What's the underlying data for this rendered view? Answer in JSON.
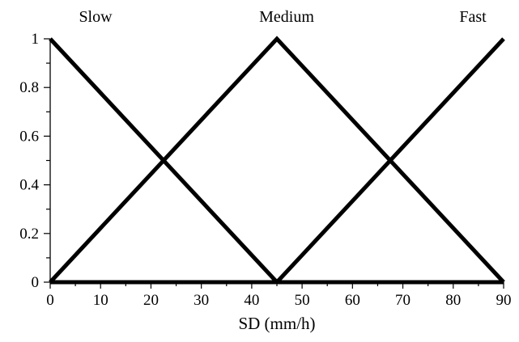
{
  "chart_data": {
    "type": "line",
    "xlabel": "SD (mm/h)",
    "ylabel": "",
    "xlim": [
      0,
      90
    ],
    "ylim": [
      0,
      1
    ],
    "x_ticks": [
      "0",
      "10",
      "20",
      "30",
      "40",
      "50",
      "60",
      "70",
      "80",
      "90"
    ],
    "y_ticks": [
      "0",
      "0.2",
      "0.4",
      "0.6",
      "0.8",
      "1"
    ],
    "grid": false,
    "series": [
      {
        "name": "Slow",
        "x": [
          0,
          45,
          90
        ],
        "y": [
          1,
          0,
          0
        ]
      },
      {
        "name": "Medium",
        "x": [
          0,
          45,
          90
        ],
        "y": [
          0,
          1,
          0
        ]
      },
      {
        "name": "Fast",
        "x": [
          0,
          45,
          90
        ],
        "y": [
          0,
          0,
          1
        ]
      }
    ],
    "line_color": "#000000"
  }
}
